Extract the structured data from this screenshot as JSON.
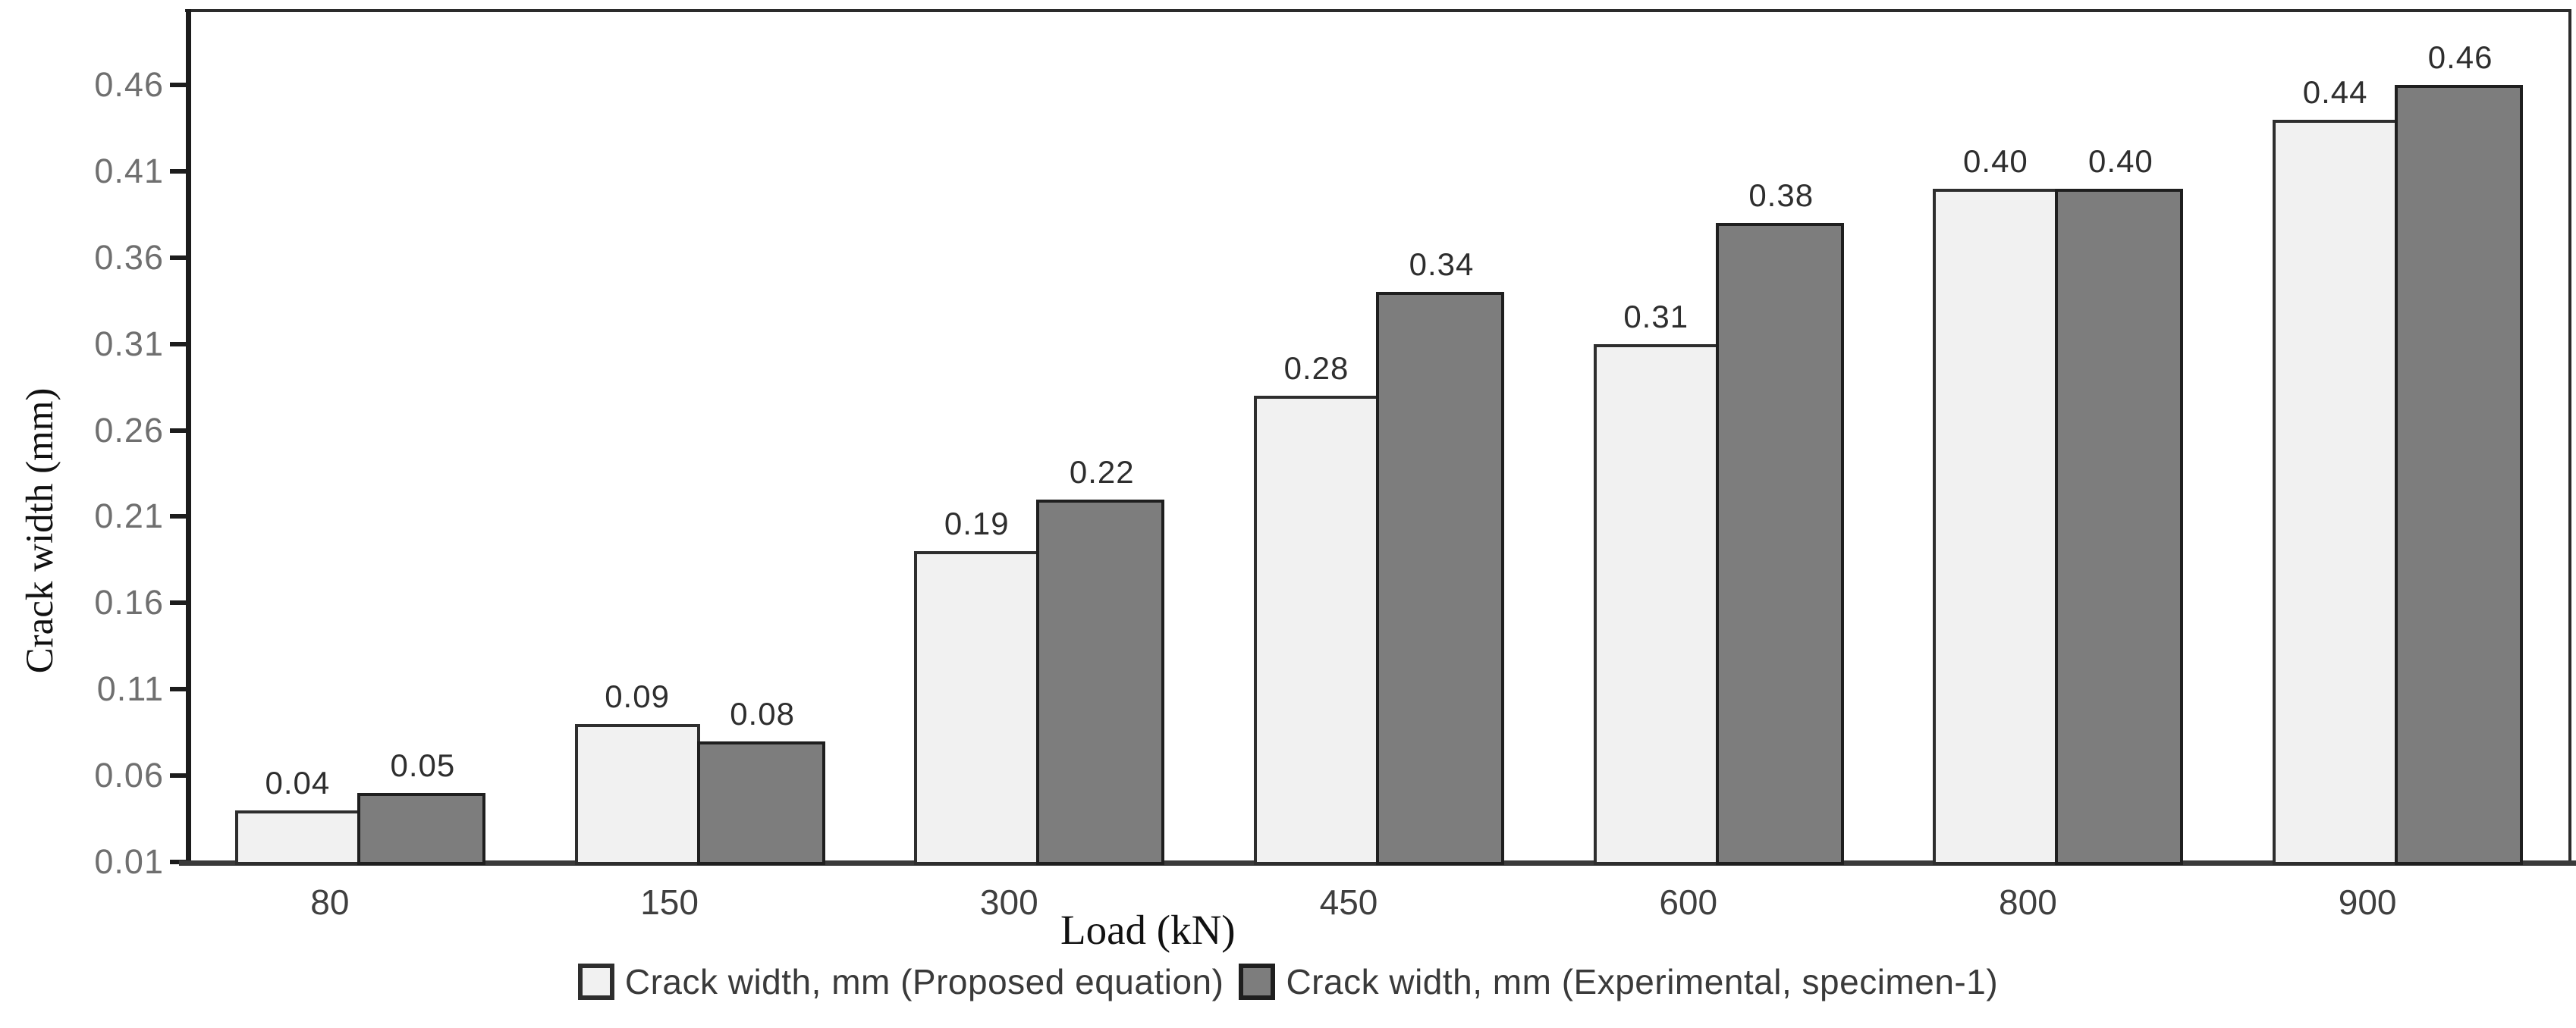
{
  "chart_data": {
    "type": "bar",
    "title": "",
    "categories": [
      "80",
      "150",
      "300",
      "450",
      "600",
      "800",
      "900"
    ],
    "series": [
      {
        "name": "Crack width, mm (Proposed equation)",
        "values": [
          0.04,
          0.09,
          0.19,
          0.28,
          0.31,
          0.4,
          0.44
        ],
        "data_labels": [
          "0.04",
          "0.09",
          "0.19",
          "0.28",
          "0.31",
          "0.40",
          "0.44"
        ],
        "fill": "#f1f1f1",
        "border": "#2e2e2e"
      },
      {
        "name": "Crack width, mm (Experimental, specimen-1)",
        "values": [
          0.05,
          0.08,
          0.22,
          0.34,
          0.38,
          0.4,
          0.46
        ],
        "data_labels": [
          "0.05",
          "0.08",
          "0.22",
          "0.34",
          "0.38",
          "0.40",
          "0.46"
        ],
        "fill": "#7d7d7d",
        "border": "#1f1f1f"
      }
    ],
    "xlabel": "Load (kN)",
    "ylabel": "Crack width (mm)",
    "yticks": [
      "0.46",
      "0.41",
      "0.36",
      "0.31",
      "0.26",
      "0.21",
      "0.16",
      "0.11",
      "0.06",
      "0.01"
    ],
    "ylim": [
      0.01,
      0.503
    ],
    "grid": false,
    "legend_position": "bottom",
    "colors": {
      "background": "#ffffff",
      "axis_line": "#1c1c1c",
      "x_axis_line": "#3a3a3a",
      "tick_label": "#6f6f6f",
      "data_label": "#2e2e2e",
      "legend_text": "#3a3a3a"
    }
  }
}
